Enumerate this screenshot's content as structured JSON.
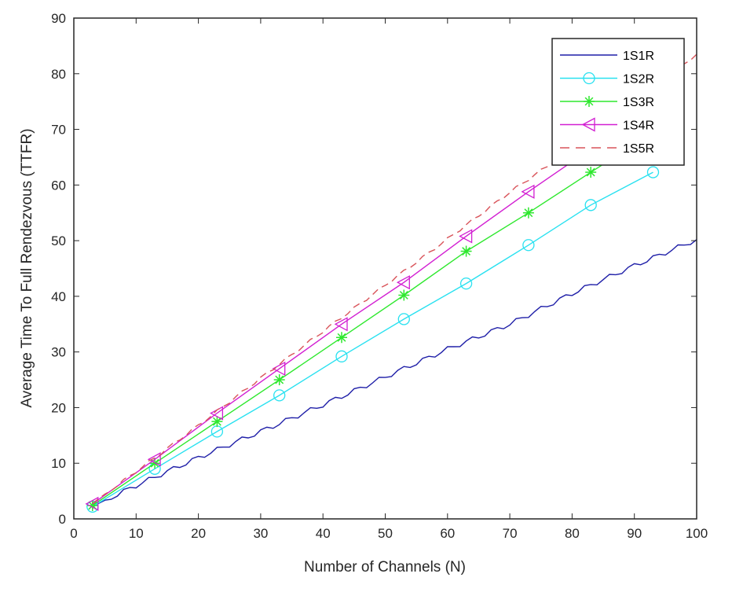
{
  "chart_data": {
    "type": "line",
    "title": "",
    "xlabel": "Number of Channels (N)",
    "ylabel": "Average Time To Full Rendezvous (TTFR)",
    "xlim": [
      0,
      100
    ],
    "ylim": [
      0,
      90
    ],
    "xticks": [
      0,
      10,
      20,
      30,
      40,
      50,
      60,
      70,
      80,
      90,
      100
    ],
    "yticks": [
      0,
      10,
      20,
      30,
      40,
      50,
      60,
      70,
      80,
      90
    ],
    "grid": false,
    "legend_position": "upper right",
    "x": [
      3,
      13,
      23,
      33,
      43,
      53,
      63,
      73,
      83,
      93
    ],
    "series": [
      {
        "name": "1S1R",
        "color": "#1f1fa8",
        "style": "solid",
        "marker": "none",
        "x_dense": [
          3,
          10,
          20,
          30,
          40,
          50,
          60,
          70,
          80,
          90,
          100
        ],
        "values_dense": [
          2.2,
          6,
          11,
          15.7,
          20.5,
          25.5,
          30.5,
          35,
          40.5,
          45.5,
          50.2
        ]
      },
      {
        "name": "1S2R",
        "color": "#29e1f0",
        "style": "solid",
        "marker": "circle",
        "values": [
          2.2,
          9.0,
          15.7,
          22.2,
          29.2,
          35.9,
          42.3,
          49.2,
          56.4,
          62.3
        ]
      },
      {
        "name": "1S3R",
        "color": "#2ee82e",
        "style": "solid",
        "marker": "asterisk",
        "values": [
          2.4,
          10.0,
          17.5,
          25.0,
          32.6,
          40.2,
          48.1,
          55.0,
          62.3,
          69.5
        ]
      },
      {
        "name": "1S4R",
        "color": "#d21fd2",
        "style": "solid",
        "marker": "triangle-left",
        "values": [
          2.7,
          10.7,
          19.0,
          27.0,
          35.0,
          42.5,
          50.8,
          58.8,
          66.5,
          74.5
        ]
      },
      {
        "name": "1S5R",
        "color": "#d9545a",
        "style": "dashed",
        "marker": "none",
        "x_dense": [
          3,
          10,
          20,
          30,
          40,
          50,
          60,
          70,
          80,
          90,
          100
        ],
        "values_dense": [
          2.8,
          8.5,
          16.8,
          25.3,
          33.7,
          42,
          50.3,
          58.7,
          66.5,
          75,
          83.5
        ]
      }
    ]
  }
}
